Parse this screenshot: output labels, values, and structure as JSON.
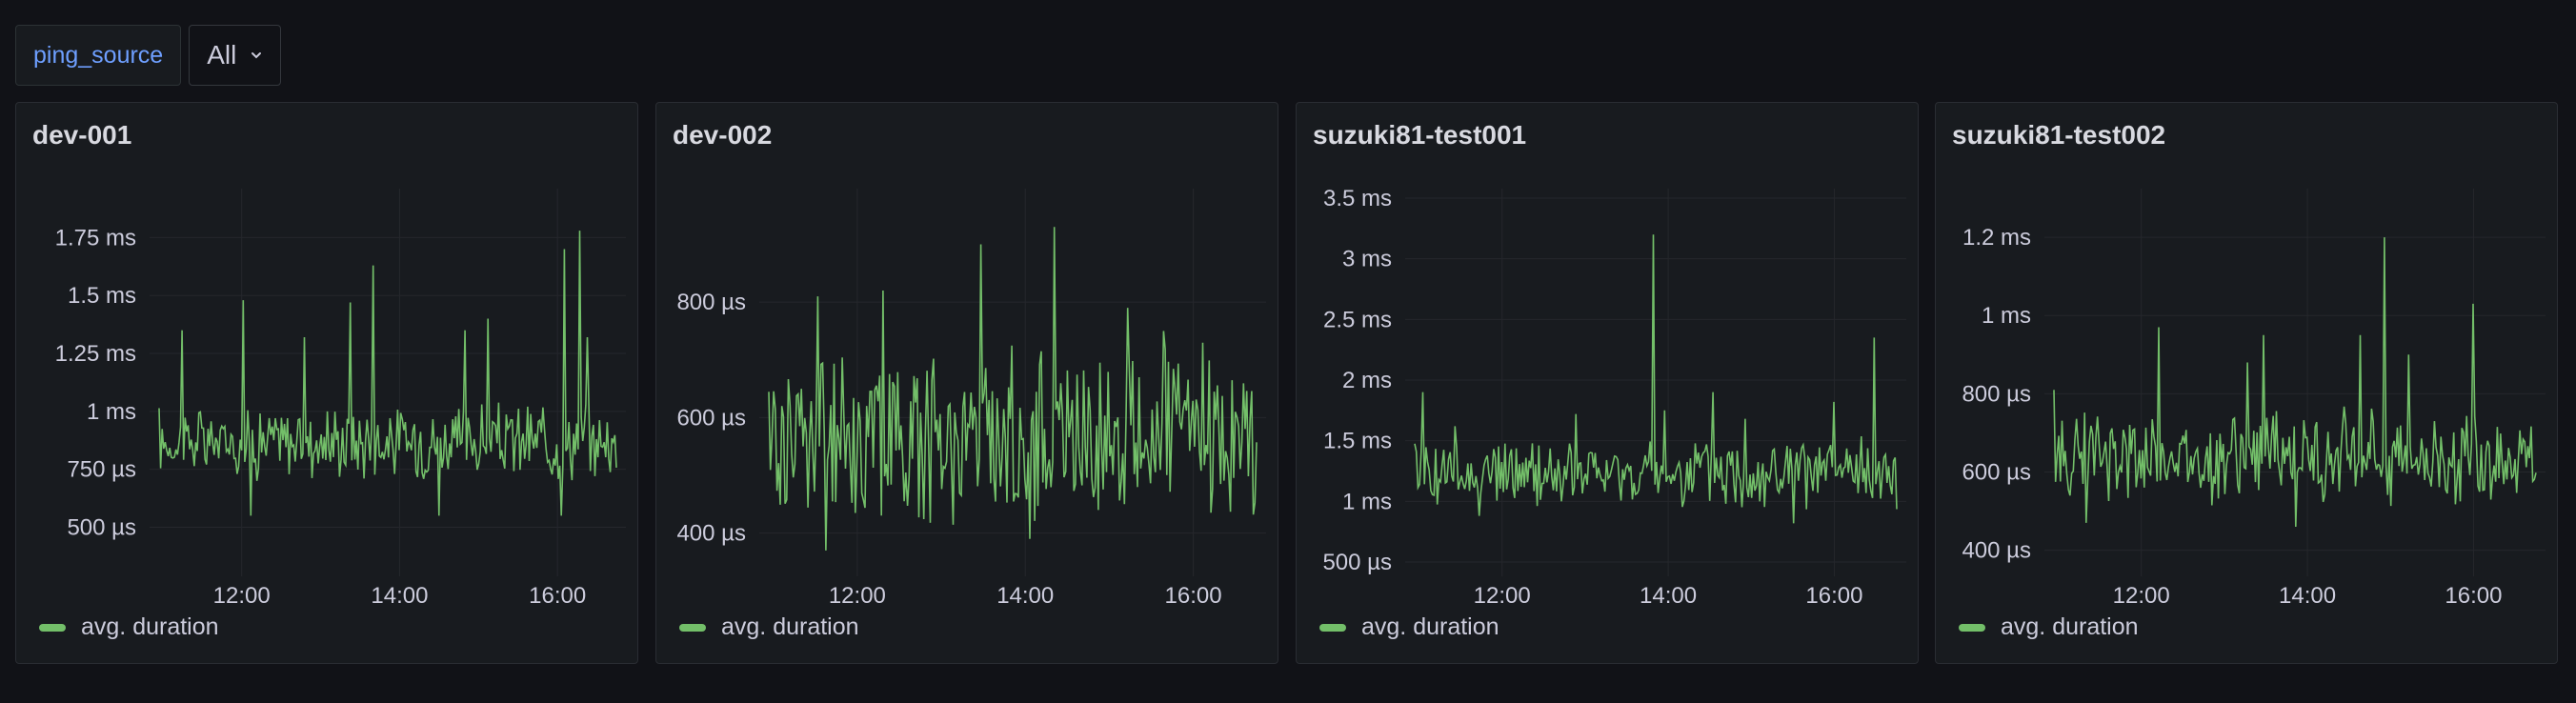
{
  "variables": {
    "name": "ping_source",
    "value": "All"
  },
  "colors": {
    "series": "#73bf69",
    "grid": "#25272c"
  },
  "icons": {
    "dropdown": "chevron-down-icon"
  },
  "panels": [
    {
      "title": "dev-001",
      "legend": "avg. duration",
      "chart_data": {
        "type": "line",
        "xlabel": "",
        "ylabel": "",
        "x_ticks": [
          "12:00",
          "14:00",
          "16:00"
        ],
        "x_range": [
          "10:50",
          "16:52"
        ],
        "y_ticks": [
          "500 µs",
          "750 µs",
          "1 ms",
          "1.25 ms",
          "1.5 ms",
          "1.75 ms"
        ],
        "y_tick_values": [
          0.5,
          0.75,
          1.0,
          1.25,
          1.5,
          1.75
        ],
        "ylim": [
          0.35,
          1.92
        ],
        "y_unit": "ms",
        "series": [
          {
            "name": "avg. duration",
            "baseline": 0.87,
            "spread": 0.12,
            "spikes": [
              [
                15,
                1.35
              ],
              [
                55,
                1.48
              ],
              [
                95,
                1.32
              ],
              [
                125,
                1.47
              ],
              [
                140,
                1.63
              ],
              [
                200,
                1.35
              ],
              [
                215,
                1.4
              ],
              [
                265,
                1.7
              ],
              [
                275,
                1.78
              ],
              [
                280,
                1.32
              ],
              [
                60,
                0.55
              ],
              [
                183,
                0.55
              ],
              [
                263,
                0.55
              ]
            ]
          }
        ],
        "grid": true,
        "legend_position": "bottom-left"
      }
    },
    {
      "title": "dev-002",
      "legend": "avg. duration",
      "chart_data": {
        "type": "line",
        "xlabel": "",
        "ylabel": "",
        "x_ticks": [
          "12:00",
          "14:00",
          "16:00"
        ],
        "x_range": [
          "10:50",
          "16:52"
        ],
        "y_ticks": [
          "400 µs",
          "600 µs",
          "800 µs"
        ],
        "y_tick_values": [
          0.4,
          0.6,
          0.8
        ],
        "ylim": [
          0.35,
          0.98
        ],
        "y_unit": "ms",
        "series": [
          {
            "name": "avg. duration",
            "baseline": 0.57,
            "spread": 0.11,
            "spikes": [
              [
                30,
                0.81
              ],
              [
                70,
                0.82
              ],
              [
                130,
                0.9
              ],
              [
                175,
                0.93
              ],
              [
                220,
                0.79
              ],
              [
                242,
                0.75
              ],
              [
                35,
                0.37
              ],
              [
                160,
                0.39
              ]
            ]
          }
        ],
        "grid": true,
        "legend_position": "bottom-left"
      }
    },
    {
      "title": "suzuki81-test001",
      "legend": "avg. duration",
      "chart_data": {
        "type": "line",
        "xlabel": "",
        "ylabel": "",
        "x_ticks": [
          "12:00",
          "14:00",
          "16:00"
        ],
        "x_range": [
          "10:50",
          "16:52"
        ],
        "y_ticks": [
          "500 µs",
          "1 ms",
          "1.5 ms",
          "2 ms",
          "2.5 ms",
          "3 ms",
          "3.5 ms"
        ],
        "y_tick_values": [
          0.5,
          1.0,
          1.5,
          2.0,
          2.5,
          3.0,
          3.5
        ],
        "ylim": [
          0.5,
          3.5
        ],
        "y_unit": "ms",
        "series": [
          {
            "name": "avg. duration",
            "baseline": 1.22,
            "spread": 0.22,
            "spikes": [
              [
                5,
                1.9
              ],
              [
                25,
                1.62
              ],
              [
                100,
                1.72
              ],
              [
                148,
                3.2
              ],
              [
                155,
                1.75
              ],
              [
                185,
                1.9
              ],
              [
                205,
                1.68
              ],
              [
                260,
                1.82
              ],
              [
                285,
                2.35
              ],
              [
                235,
                0.82
              ],
              [
                40,
                0.88
              ]
            ]
          }
        ],
        "grid": true,
        "legend_position": "bottom-left"
      }
    },
    {
      "title": "suzuki81-test002",
      "legend": "avg. duration",
      "chart_data": {
        "type": "line",
        "xlabel": "",
        "ylabel": "",
        "x_ticks": [
          "12:00",
          "14:00",
          "16:00"
        ],
        "x_range": [
          "10:50",
          "16:52"
        ],
        "y_ticks": [
          "400 µs",
          "600 µs",
          "800 µs",
          "1 ms",
          "1.2 ms"
        ],
        "y_tick_values": [
          0.4,
          0.6,
          0.8,
          1.0,
          1.2
        ],
        "ylim": [
          0.37,
          1.3
        ],
        "y_unit": "ms",
        "series": [
          {
            "name": "avg. duration",
            "baseline": 0.64,
            "spread": 0.09,
            "spikes": [
              [
                0,
                0.81
              ],
              [
                65,
                0.97
              ],
              [
                120,
                0.88
              ],
              [
                130,
                0.95
              ],
              [
                190,
                0.95
              ],
              [
                205,
                1.2
              ],
              [
                220,
                0.9
              ],
              [
                260,
                1.03
              ],
              [
                20,
                0.47
              ],
              [
                150,
                0.46
              ]
            ]
          }
        ],
        "grid": true,
        "legend_position": "bottom-left"
      }
    }
  ]
}
